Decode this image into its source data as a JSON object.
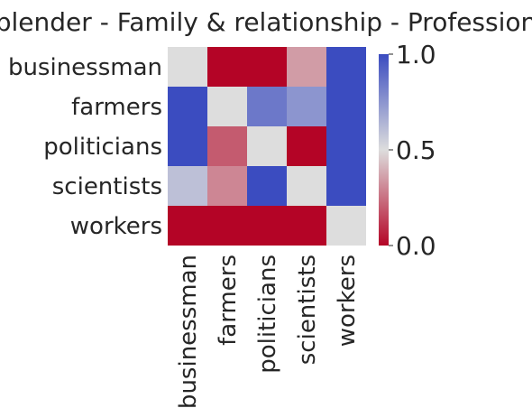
{
  "chart_data": {
    "type": "heatmap",
    "title": "blender - Family & relationship - Profession",
    "xlabel": "",
    "ylabel": "",
    "rows": [
      "businessman",
      "farmers",
      "politicians",
      "scientists",
      "workers"
    ],
    "cols": [
      "businessman",
      "farmers",
      "politicians",
      "scientists",
      "workers"
    ],
    "values": [
      [
        0.5,
        0.0,
        0.0,
        0.35,
        1.0
      ],
      [
        1.0,
        0.5,
        0.85,
        0.75,
        1.0
      ],
      [
        1.0,
        0.2,
        0.5,
        0.0,
        1.0
      ],
      [
        0.6,
        0.3,
        1.0,
        0.5,
        1.0
      ],
      [
        0.0,
        0.0,
        0.0,
        0.0,
        0.5
      ]
    ],
    "colorbar": {
      "min": 0.0,
      "max": 1.0,
      "ticks": [
        "0.0",
        "0.5",
        "1.0"
      ],
      "colormap": "coolwarm_r",
      "low_color": "#b40426",
      "mid_color": "#dddddd",
      "high_color": "#3b4cc0"
    },
    "grid": false,
    "legend": "colorbar right"
  }
}
